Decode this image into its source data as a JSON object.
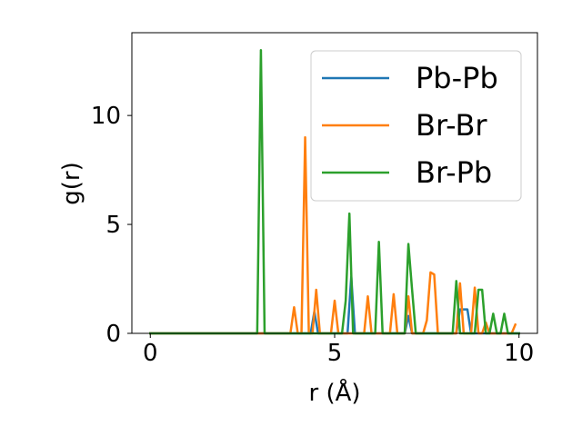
{
  "chart_data": {
    "type": "line",
    "xlabel": "r (Å)",
    "ylabel": "g(r)",
    "xlim": [
      -0.5,
      10.5
    ],
    "ylim": [
      0,
      13.8
    ],
    "xticks": [
      0,
      5,
      10
    ],
    "xtick_labels": [
      "0",
      "5",
      "10"
    ],
    "yticks": [
      0,
      5,
      10
    ],
    "ytick_labels": [
      "0",
      "5",
      "10"
    ],
    "grid": false,
    "legend_position": "upper-right",
    "series": [
      {
        "name": "Pb-Pb",
        "color": "#1f77b4",
        "x": [
          0.0,
          3.0,
          4.35,
          4.45,
          4.55,
          5.35,
          5.45,
          5.55,
          6.5,
          6.9,
          7.0,
          7.1,
          8.3,
          8.4,
          8.5,
          8.6,
          8.7,
          10.0
        ],
        "y": [
          0,
          0,
          0,
          1.0,
          0,
          0,
          2.6,
          0,
          0,
          0,
          0.8,
          0,
          0,
          1.1,
          1.1,
          1.1,
          0,
          0
        ]
      },
      {
        "name": "Br-Br",
        "color": "#ff7f0e",
        "x": [
          0.0,
          3.8,
          3.9,
          4.0,
          4.1,
          4.2,
          4.3,
          4.4,
          4.5,
          4.6,
          4.9,
          5.0,
          5.1,
          5.8,
          5.9,
          6.0,
          6.5,
          6.6,
          6.7,
          6.9,
          7.0,
          7.1,
          7.4,
          7.5,
          7.6,
          7.7,
          7.8,
          8.3,
          8.4,
          8.5,
          8.7,
          8.8,
          8.9,
          9.0,
          9.1,
          9.2,
          9.8,
          9.9
        ],
        "y": [
          0,
          0,
          1.2,
          0,
          0,
          9.0,
          0,
          0,
          2.0,
          0,
          0,
          1.5,
          0,
          0,
          1.7,
          0,
          0,
          1.8,
          0,
          0,
          1.7,
          0,
          0,
          0.6,
          2.8,
          2.7,
          0,
          0,
          2.3,
          0,
          0,
          2.1,
          0,
          0,
          0.5,
          0,
          0,
          0.4
        ]
      },
      {
        "name": "Br-Pb",
        "color": "#2ca02c",
        "x": [
          0.0,
          2.9,
          3.0,
          3.1,
          5.2,
          5.3,
          5.4,
          5.5,
          6.0,
          6.1,
          6.2,
          6.3,
          6.8,
          6.9,
          7.0,
          7.1,
          7.2,
          8.2,
          8.3,
          8.4,
          8.5,
          8.8,
          8.9,
          9.0,
          9.1,
          9.2,
          9.3,
          9.4,
          9.5,
          9.6,
          9.7,
          10.0
        ],
        "y": [
          0,
          0,
          13.0,
          0,
          0,
          1.5,
          5.5,
          0,
          0,
          0,
          4.2,
          0,
          0,
          0,
          4.1,
          2.0,
          0,
          0,
          2.4,
          0,
          0,
          0,
          2.0,
          2.0,
          0,
          0,
          0.9,
          0,
          0,
          0.9,
          0,
          0
        ]
      }
    ]
  }
}
